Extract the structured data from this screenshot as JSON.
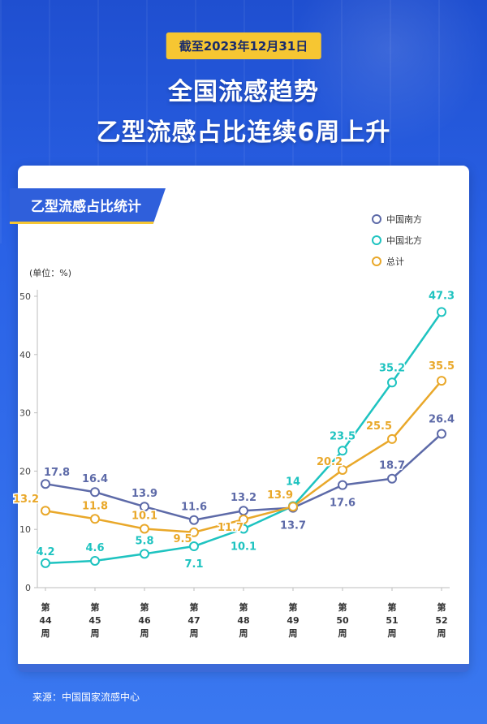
{
  "header": {
    "date_badge": "截至2023年12月31日",
    "title_line1": "全国流感趋势",
    "title_line2": "乙型流感占比连续6周上升"
  },
  "chart_label": "乙型流感占比统计",
  "source": "来源：中国国家流感中心",
  "chart_data": {
    "type": "line",
    "unit_label": "(单位：%)",
    "ylim": [
      0,
      50
    ],
    "yticks": [
      0,
      10,
      20,
      30,
      40,
      50
    ],
    "grid": false,
    "legend_position": "top-right",
    "categories": [
      [
        "第",
        "44",
        "周"
      ],
      [
        "第",
        "45",
        "周"
      ],
      [
        "第",
        "46",
        "周"
      ],
      [
        "第",
        "47",
        "周"
      ],
      [
        "第",
        "48",
        "周"
      ],
      [
        "第",
        "49",
        "周"
      ],
      [
        "第",
        "50",
        "周"
      ],
      [
        "第",
        "51",
        "周"
      ],
      [
        "第",
        "52",
        "周"
      ]
    ],
    "series": [
      {
        "name": "中国南方",
        "color": "#5d6aa8",
        "values": [
          17.8,
          16.4,
          13.9,
          11.6,
          13.2,
          13.7,
          17.6,
          18.7,
          26.4
        ],
        "labels": [
          "17.8",
          "16.4",
          "13.9",
          "11.6",
          "13.2",
          "13.7",
          "17.6",
          "18.7",
          "26.4"
        ]
      },
      {
        "name": "中国北方",
        "color": "#1ec3c0",
        "values": [
          4.2,
          4.6,
          5.8,
          7.1,
          10.1,
          14,
          23.5,
          35.2,
          47.3
        ],
        "labels": [
          "4.2",
          "4.6",
          "5.8",
          "7.1",
          "10.1",
          "14",
          "23.5",
          "35.2",
          "47.3"
        ]
      },
      {
        "name": "总计",
        "color": "#e9a82a",
        "values": [
          13.2,
          11.8,
          10.1,
          9.5,
          11.7,
          13.9,
          20.2,
          25.5,
          35.5
        ],
        "labels": [
          "13.2",
          "11.8",
          "10.1",
          "9.5",
          "11.7",
          "13.9",
          "20.2",
          "25.5",
          "35.5"
        ]
      }
    ]
  }
}
